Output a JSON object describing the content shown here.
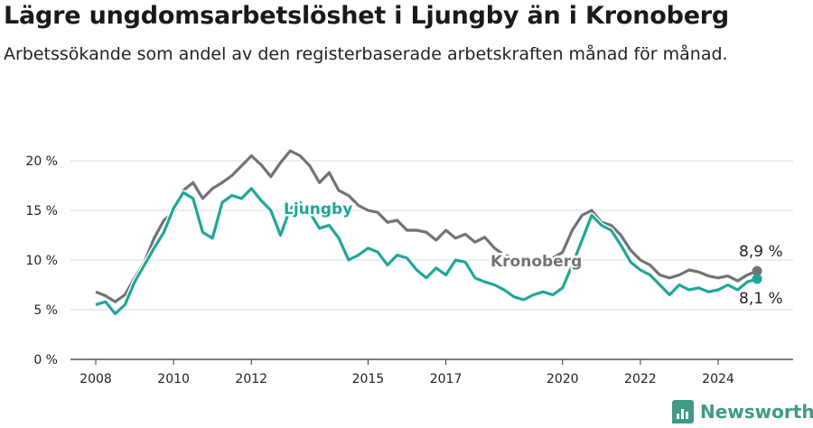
{
  "title": "Lägre ungdomsarbetslöshet i Ljungby än i Kronoberg",
  "subtitle": "Arbetssökande som andel av den registerbaserade arbetskraften månad för månad.",
  "brand": {
    "name": "Newsworthy",
    "color": "#3f9a86",
    "icon": "bar-chart-icon"
  },
  "chart_data": {
    "type": "line",
    "x_ticks": [
      "2008",
      "2010",
      "2012",
      "2015",
      "2017",
      "2020",
      "2022",
      "2024"
    ],
    "y_ticks": [
      "0 %",
      "5 %",
      "10 %",
      "15 %",
      "20 %"
    ],
    "ylim": [
      0,
      20
    ],
    "grid": true,
    "legend": "inline labels",
    "series": [
      {
        "name": "Kronoberg",
        "color": "#727277",
        "end_label": "8,9 %",
        "points": [
          [
            2008.0,
            6.8
          ],
          [
            2008.25,
            6.4
          ],
          [
            2008.5,
            5.8
          ],
          [
            2008.75,
            6.5
          ],
          [
            2009.0,
            8.2
          ],
          [
            2009.25,
            9.8
          ],
          [
            2009.5,
            12.2
          ],
          [
            2009.75,
            14.0
          ],
          [
            2010.0,
            14.8
          ],
          [
            2010.25,
            17.0
          ],
          [
            2010.5,
            17.8
          ],
          [
            2010.75,
            16.2
          ],
          [
            2011.0,
            17.2
          ],
          [
            2011.25,
            17.8
          ],
          [
            2011.5,
            18.5
          ],
          [
            2011.75,
            19.5
          ],
          [
            2012.0,
            20.5
          ],
          [
            2012.25,
            19.6
          ],
          [
            2012.5,
            18.4
          ],
          [
            2012.75,
            19.8
          ],
          [
            2013.0,
            21.0
          ],
          [
            2013.25,
            20.5
          ],
          [
            2013.5,
            19.5
          ],
          [
            2013.75,
            17.8
          ],
          [
            2014.0,
            18.8
          ],
          [
            2014.25,
            17.0
          ],
          [
            2014.5,
            16.5
          ],
          [
            2014.75,
            15.5
          ],
          [
            2015.0,
            15.0
          ],
          [
            2015.25,
            14.8
          ],
          [
            2015.5,
            13.8
          ],
          [
            2015.75,
            14.0
          ],
          [
            2016.0,
            13.0
          ],
          [
            2016.25,
            13.0
          ],
          [
            2016.5,
            12.8
          ],
          [
            2016.75,
            12.0
          ],
          [
            2017.0,
            13.0
          ],
          [
            2017.25,
            12.2
          ],
          [
            2017.5,
            12.6
          ],
          [
            2017.75,
            11.8
          ],
          [
            2018.0,
            12.3
          ],
          [
            2018.25,
            11.2
          ],
          [
            2018.5,
            10.5
          ],
          [
            2018.75,
            10.2
          ],
          [
            2019.0,
            10.0
          ],
          [
            2019.25,
            10.0
          ],
          [
            2019.5,
            9.8
          ],
          [
            2019.75,
            10.2
          ],
          [
            2020.0,
            10.8
          ],
          [
            2020.25,
            13.0
          ],
          [
            2020.5,
            14.5
          ],
          [
            2020.75,
            15.0
          ],
          [
            2021.0,
            13.8
          ],
          [
            2021.25,
            13.5
          ],
          [
            2021.5,
            12.5
          ],
          [
            2021.75,
            11.0
          ],
          [
            2022.0,
            10.0
          ],
          [
            2022.25,
            9.5
          ],
          [
            2022.5,
            8.5
          ],
          [
            2022.75,
            8.2
          ],
          [
            2023.0,
            8.5
          ],
          [
            2023.25,
            9.0
          ],
          [
            2023.5,
            8.8
          ],
          [
            2023.75,
            8.4
          ],
          [
            2024.0,
            8.2
          ],
          [
            2024.25,
            8.4
          ],
          [
            2024.5,
            7.9
          ],
          [
            2024.75,
            8.5
          ],
          [
            2025.0,
            8.9
          ]
        ]
      },
      {
        "name": "Ljungby",
        "color": "#1fa699",
        "end_label": "8,1 %",
        "points": [
          [
            2008.0,
            5.5
          ],
          [
            2008.25,
            5.8
          ],
          [
            2008.5,
            4.6
          ],
          [
            2008.75,
            5.5
          ],
          [
            2009.0,
            7.8
          ],
          [
            2009.25,
            9.5
          ],
          [
            2009.5,
            11.2
          ],
          [
            2009.75,
            12.8
          ],
          [
            2010.0,
            15.2
          ],
          [
            2010.25,
            16.8
          ],
          [
            2010.5,
            16.2
          ],
          [
            2010.75,
            12.8
          ],
          [
            2011.0,
            12.2
          ],
          [
            2011.25,
            15.8
          ],
          [
            2011.5,
            16.5
          ],
          [
            2011.75,
            16.2
          ],
          [
            2012.0,
            17.2
          ],
          [
            2012.25,
            16.0
          ],
          [
            2012.5,
            15.0
          ],
          [
            2012.75,
            12.5
          ],
          [
            2013.0,
            15.2
          ],
          [
            2013.25,
            15.8
          ],
          [
            2013.5,
            14.8
          ],
          [
            2013.75,
            13.2
          ],
          [
            2014.0,
            13.5
          ],
          [
            2014.25,
            12.2
          ],
          [
            2014.5,
            10.0
          ],
          [
            2014.75,
            10.5
          ],
          [
            2015.0,
            11.2
          ],
          [
            2015.25,
            10.8
          ],
          [
            2015.5,
            9.5
          ],
          [
            2015.75,
            10.5
          ],
          [
            2016.0,
            10.2
          ],
          [
            2016.25,
            9.0
          ],
          [
            2016.5,
            8.2
          ],
          [
            2016.75,
            9.2
          ],
          [
            2017.0,
            8.5
          ],
          [
            2017.25,
            10.0
          ],
          [
            2017.5,
            9.8
          ],
          [
            2017.75,
            8.2
          ],
          [
            2018.0,
            7.8
          ],
          [
            2018.25,
            7.5
          ],
          [
            2018.5,
            7.0
          ],
          [
            2018.75,
            6.3
          ],
          [
            2019.0,
            6.0
          ],
          [
            2019.25,
            6.5
          ],
          [
            2019.5,
            6.8
          ],
          [
            2019.75,
            6.5
          ],
          [
            2020.0,
            7.2
          ],
          [
            2020.25,
            9.5
          ],
          [
            2020.5,
            12.0
          ],
          [
            2020.75,
            14.5
          ],
          [
            2021.0,
            13.5
          ],
          [
            2021.25,
            13.0
          ],
          [
            2021.5,
            11.5
          ],
          [
            2021.75,
            9.8
          ],
          [
            2022.0,
            9.0
          ],
          [
            2022.25,
            8.5
          ],
          [
            2022.5,
            7.5
          ],
          [
            2022.75,
            6.5
          ],
          [
            2023.0,
            7.5
          ],
          [
            2023.25,
            7.0
          ],
          [
            2023.5,
            7.2
          ],
          [
            2023.75,
            6.8
          ],
          [
            2024.0,
            7.0
          ],
          [
            2024.25,
            7.5
          ],
          [
            2024.5,
            7.0
          ],
          [
            2024.75,
            7.8
          ],
          [
            2025.0,
            8.1
          ]
        ]
      }
    ]
  }
}
